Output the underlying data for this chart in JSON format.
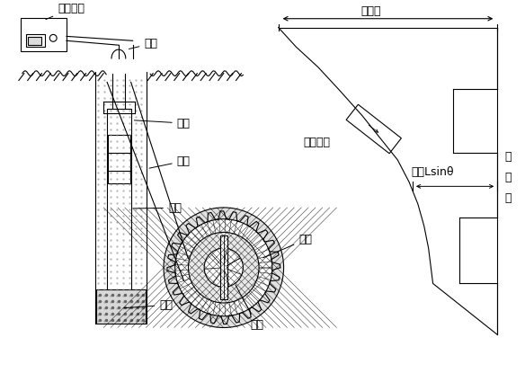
{
  "bg_color": "#ffffff",
  "line_color": "#000000",
  "fig_width": 5.84,
  "fig_height": 4.15,
  "dpi": 100,
  "labels": {
    "cedu_shebei": "测读设备",
    "dianluan": "电缆",
    "cetou": "测头",
    "zuankong": "钻孔",
    "daoguan": "导管",
    "huitian": "回填",
    "zong_weiyi": "总位移",
    "weiyi_lsin": "位移Lsinθ",
    "cedu_jianju": "测读间距",
    "yuan_zhunxian": "原\n准\n线",
    "daocao": "导槽",
    "daolun": "导轮"
  },
  "font_size": 9,
  "small_font": 8
}
